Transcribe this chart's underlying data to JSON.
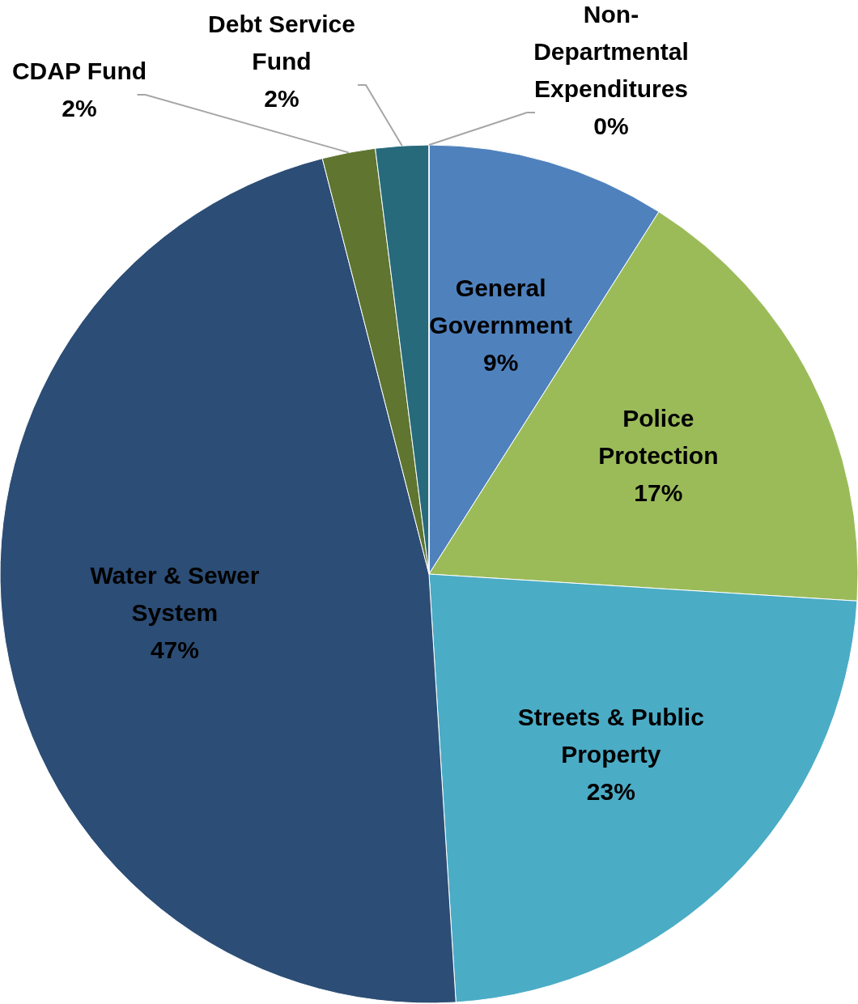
{
  "chart_data": {
    "type": "pie",
    "categories": [
      "General Government",
      "Police Protection",
      "Streets & Public Property",
      "Water & Sewer System",
      "CDAP Fund",
      "Debt Service Fund",
      "Non-Departmental Expenditures"
    ],
    "values": [
      9,
      17,
      23,
      47,
      2,
      2,
      0
    ],
    "colors": [
      "#4f81bd",
      "#9bbb59",
      "#4bacc6",
      "#2c4d75",
      "#5f7530",
      "#276a7c",
      "#95b3d7"
    ],
    "value_labels": [
      "9%",
      "17%",
      "23%",
      "47%",
      "2%",
      "2%",
      "0%"
    ]
  }
}
